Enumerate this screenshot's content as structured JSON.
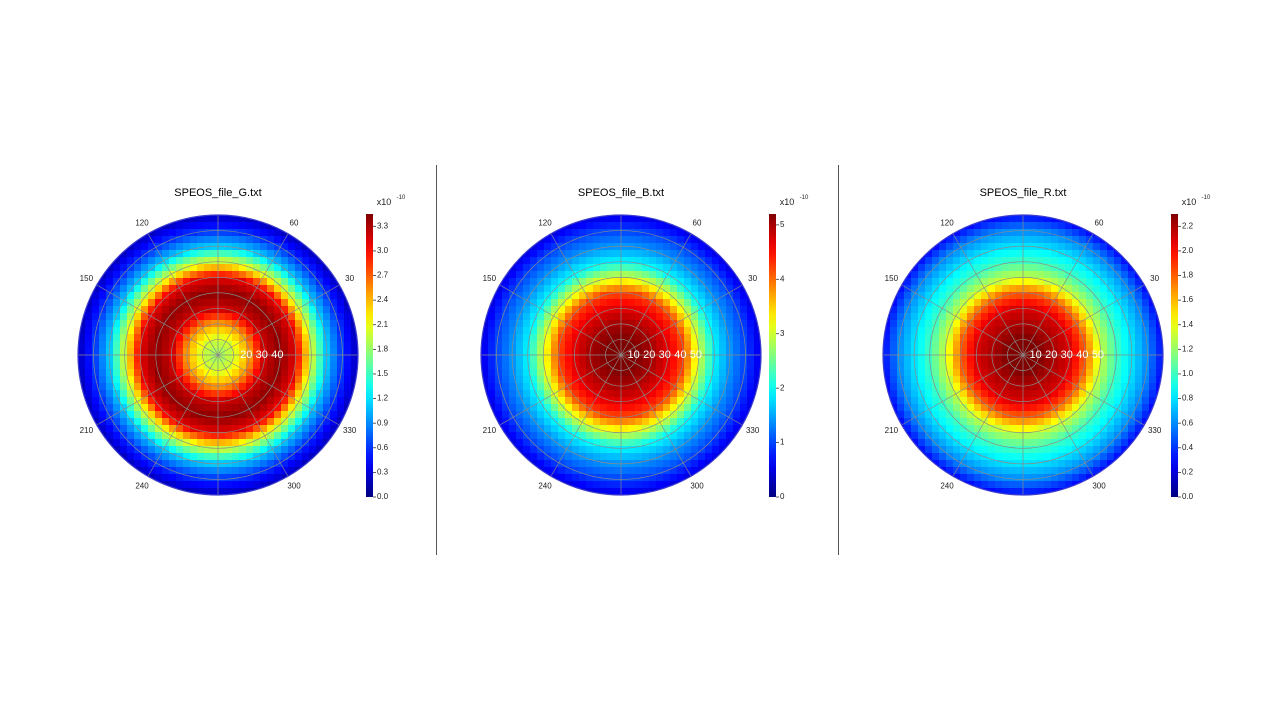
{
  "charts": [
    {
      "key": "g",
      "title": "SPEOS_file_G.txt",
      "colorbar_exponent": "x10",
      "colorbar_exponent_power": "-10",
      "colorbar_ticks": [
        "0.0",
        "0.3",
        "0.6",
        "0.9",
        "1.2",
        "1.5",
        "1.8",
        "2.1",
        "2.4",
        "2.7",
        "3.0",
        "3.3"
      ],
      "radial_labels": [
        "20",
        "30",
        "40"
      ]
    },
    {
      "key": "b",
      "title": "SPEOS_file_B.txt",
      "colorbar_exponent": "x10",
      "colorbar_exponent_power": "-10",
      "colorbar_ticks": [
        "0",
        "1",
        "2",
        "3",
        "4",
        "5"
      ],
      "radial_labels": [
        "10",
        "20",
        "30",
        "40",
        "50"
      ]
    },
    {
      "key": "r",
      "title": "SPEOS_file_R.txt",
      "colorbar_exponent": "x10",
      "colorbar_exponent_power": "-10",
      "colorbar_ticks": [
        "0.0",
        "0.2",
        "0.4",
        "0.6",
        "0.8",
        "1.0",
        "1.2",
        "1.4",
        "1.6",
        "1.8",
        "2.0",
        "2.2"
      ],
      "radial_labels": [
        "10",
        "20",
        "30",
        "40",
        "50"
      ]
    }
  ],
  "angle_labels": [
    "30",
    "60",
    "120",
    "150",
    "210",
    "240",
    "300",
    "330"
  ],
  "chart_data": [
    {
      "type": "heatmap",
      "title": "SPEOS_file_G.txt",
      "projection": "polar",
      "colormap": "jet",
      "clim": [
        0,
        3.45
      ],
      "unit_scale": "x10^-10",
      "radial_range": [
        0,
        90
      ],
      "profile_r": [
        0,
        10,
        20,
        30,
        40,
        50,
        60,
        70,
        80,
        90
      ],
      "profile_value": [
        1.8,
        2.0,
        2.5,
        3.2,
        3.4,
        3.1,
        2.0,
        1.1,
        0.6,
        0.2
      ]
    },
    {
      "type": "heatmap",
      "title": "SPEOS_file_B.txt",
      "projection": "polar",
      "colormap": "jet",
      "clim": [
        0,
        5.2
      ],
      "unit_scale": "x10^-10",
      "radial_range": [
        0,
        90
      ],
      "profile_r": [
        0,
        10,
        20,
        30,
        40,
        50,
        60,
        70,
        80,
        90
      ],
      "profile_value": [
        5.2,
        5.2,
        5.0,
        4.7,
        4.2,
        3.0,
        1.9,
        1.4,
        1.0,
        0.5
      ]
    },
    {
      "type": "heatmap",
      "title": "SPEOS_file_R.txt",
      "projection": "polar",
      "colormap": "jet",
      "clim": [
        0,
        2.3
      ],
      "unit_scale": "x10^-10",
      "radial_range": [
        0,
        90
      ],
      "profile_r": [
        0,
        10,
        20,
        30,
        40,
        50,
        60,
        70,
        80,
        90
      ],
      "profile_value": [
        2.3,
        2.3,
        2.2,
        2.1,
        1.8,
        1.3,
        1.0,
        0.8,
        0.6,
        0.3
      ]
    }
  ]
}
